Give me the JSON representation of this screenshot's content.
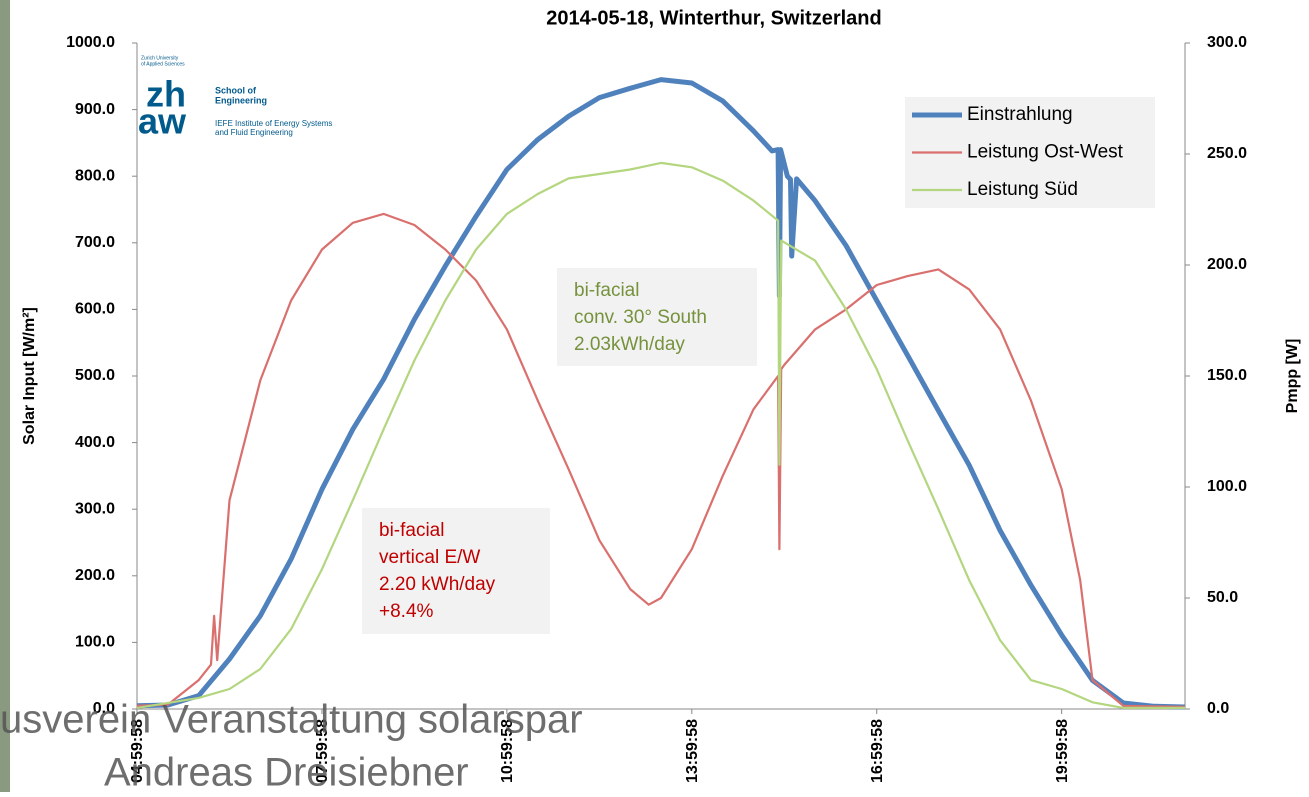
{
  "chart_data": {
    "type": "line",
    "title": "2014-05-18,  Winterthur, Switzerland",
    "ylabel": "Solar Input [W/m²]",
    "y2label": "Pmpp [W]",
    "xlim": [
      4.9994,
      22.0
    ],
    "xticks": [
      {
        "value": 4.9994,
        "label": "04:59:58"
      },
      {
        "value": 7.9994,
        "label": "07:59:58"
      },
      {
        "value": 10.9994,
        "label": "10:59:58"
      },
      {
        "value": 13.9994,
        "label": "13:59:58"
      },
      {
        "value": 16.9994,
        "label": "16:59:58"
      },
      {
        "value": 19.9994,
        "label": "19:59:58"
      }
    ],
    "ylim": [
      0,
      1000
    ],
    "yticks": [
      {
        "value": 0,
        "label": "0.0"
      },
      {
        "value": 100,
        "label": "100.0"
      },
      {
        "value": 200,
        "label": "200.0"
      },
      {
        "value": 300,
        "label": "300.0"
      },
      {
        "value": 400,
        "label": "400.0"
      },
      {
        "value": 500,
        "label": "500.0"
      },
      {
        "value": 600,
        "label": "600.0"
      },
      {
        "value": 700,
        "label": "700.0"
      },
      {
        "value": 800,
        "label": "800.0"
      },
      {
        "value": 900,
        "label": "900.0"
      },
      {
        "value": 1000,
        "label": "1000.0"
      }
    ],
    "y2lim": [
      0,
      300
    ],
    "y2ticks": [
      {
        "value": 0,
        "label": "0.0"
      },
      {
        "value": 50,
        "label": "50.0"
      },
      {
        "value": 100,
        "label": "100.0"
      },
      {
        "value": 150,
        "label": "150.0"
      },
      {
        "value": 200,
        "label": "200.0"
      },
      {
        "value": 250,
        "label": "250.0"
      },
      {
        "value": 300,
        "label": "300.0"
      }
    ],
    "legend": "upper right",
    "series": [
      {
        "name": "Einstrahlung",
        "color": "#4f81bd",
        "x": [
          5.0,
          5.5,
          6.0,
          6.5,
          7.0,
          7.5,
          8.0,
          8.5,
          9.0,
          9.5,
          10.0,
          10.5,
          11.0,
          11.5,
          12.0,
          12.5,
          13.0,
          13.5,
          14.0,
          14.5,
          15.0,
          15.3,
          15.4,
          15.42,
          15.44,
          15.55,
          15.6,
          15.62,
          15.7,
          16.0,
          16.5,
          17.0,
          17.5,
          18.0,
          18.5,
          19.0,
          19.5,
          20.0,
          20.5,
          21.0,
          21.5,
          22.0
        ],
        "values": [
          5,
          6,
          20,
          75,
          140,
          225,
          330,
          420,
          495,
          585,
          665,
          740,
          810,
          855,
          890,
          918,
          932,
          945,
          940,
          913,
          868,
          838,
          840,
          620,
          840,
          800,
          795,
          680,
          796,
          763,
          696,
          613,
          531,
          448,
          366,
          268,
          186,
          111,
          43,
          9,
          4,
          3
        ]
      },
      {
        "name": "Leistung Ost-West",
        "color": "#d9706e",
        "axis": "y2",
        "x": [
          5.0,
          5.5,
          6.0,
          6.2,
          6.25,
          6.3,
          6.5,
          7.0,
          7.5,
          8.0,
          8.5,
          9.0,
          9.5,
          10.0,
          10.5,
          11.0,
          11.5,
          12.0,
          12.5,
          13.0,
          13.3,
          13.5,
          14.0,
          14.5,
          15.0,
          15.4,
          15.42,
          15.45,
          15.5,
          16.0,
          16.5,
          17.0,
          17.5,
          18.0,
          18.5,
          19.0,
          19.5,
          20.0,
          20.3,
          20.5,
          21.0,
          22.0
        ],
        "values": [
          1.4,
          2,
          13,
          20,
          42,
          22,
          94,
          148,
          184,
          207,
          219,
          223,
          218,
          207,
          193,
          171,
          139,
          108,
          76,
          54,
          47,
          50,
          72,
          105,
          135,
          150,
          72,
          153,
          155,
          171,
          180,
          191,
          195,
          198,
          189,
          171,
          139,
          99,
          58,
          13,
          1.4,
          1
        ]
      },
      {
        "name": "Leistung Süd",
        "color": "#b3d67f",
        "axis": "y2",
        "x": [
          5.0,
          6.0,
          6.5,
          7.0,
          7.5,
          8.0,
          8.5,
          9.0,
          9.5,
          10.0,
          10.5,
          11.0,
          11.5,
          12.0,
          12.5,
          13.0,
          13.5,
          14.0,
          14.5,
          15.0,
          15.4,
          15.42,
          15.45,
          16.0,
          16.5,
          17.0,
          17.5,
          18.0,
          18.5,
          19.0,
          19.5,
          20.0,
          20.5,
          21.0,
          22.0
        ],
        "values": [
          0.5,
          5,
          9,
          18,
          36,
          63,
          94,
          126,
          157,
          184,
          207,
          223,
          232,
          239,
          241,
          243,
          246,
          244,
          238,
          229,
          220,
          110,
          211,
          202,
          180,
          153,
          121,
          90,
          58,
          31,
          13,
          9,
          3,
          0.5,
          0.5
        ]
      }
    ],
    "annotations": [
      {
        "lines": [
          "bi-facial",
          "conv. 30° South",
          "2.03kWh/day"
        ],
        "color": "#76923c"
      },
      {
        "lines": [
          "bi-facial",
          "vertical E/W",
          "2.20 kWh/day",
          "+8.4%"
        ],
        "color": "#c00000"
      }
    ]
  },
  "logo": {
    "university": [
      "Zurich University",
      "of Applied Sciences"
    ],
    "mark": [
      "zh",
      "aw"
    ],
    "school": [
      "School of",
      "Engineering"
    ],
    "institute": [
      "IEFE Institute of Energy Systems",
      "and Fluid Engineering"
    ]
  },
  "slide_footer": [
    "usverein Veranstaltung    solarspar",
    "Andreas Dreisiebner"
  ]
}
